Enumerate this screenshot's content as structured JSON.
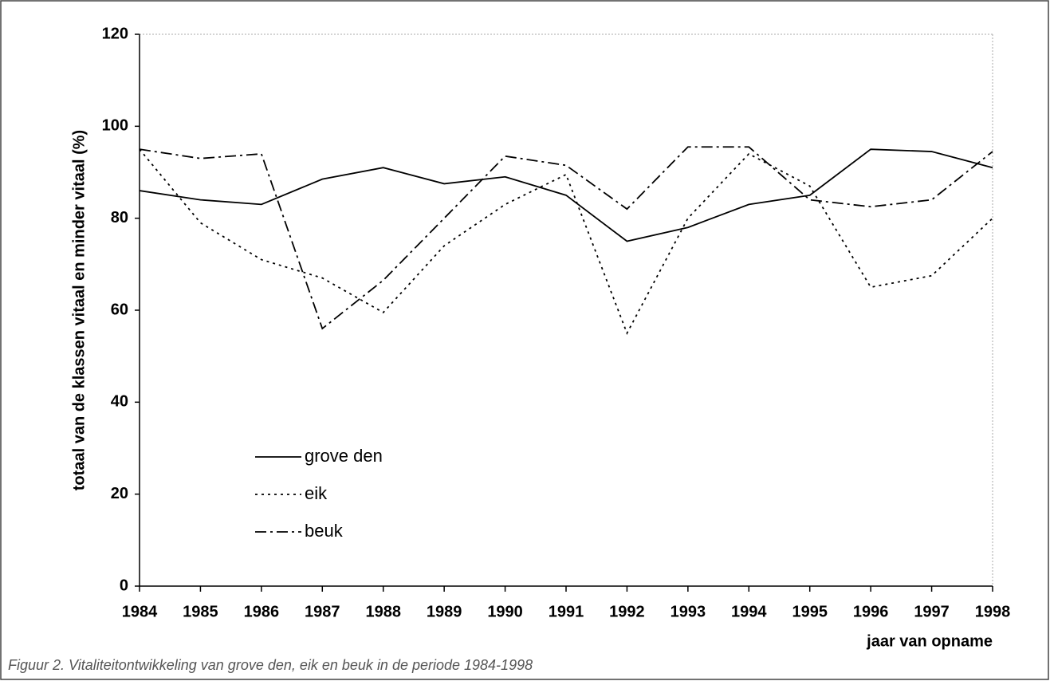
{
  "chart_data": {
    "type": "line",
    "ylabel": "totaal van de klassen vitaal en minder vitaal (%)",
    "xlabel": "jaar van opname",
    "caption": "Figuur 2. Vitaliteitontwikkeling van grove den, eik en beuk in de periode 1984-1998",
    "categories": [
      "1984",
      "1985",
      "1986",
      "1987",
      "1988",
      "1989",
      "1990",
      "1991",
      "1992",
      "1993",
      "1994",
      "1995",
      "1996",
      "1997",
      "1998"
    ],
    "series": [
      {
        "name": "grove den",
        "color": "#000000",
        "line_style": "solid",
        "values": [
          86,
          84,
          83,
          88.5,
          91,
          87.5,
          89,
          85,
          75,
          78,
          83,
          85,
          95,
          94.5,
          91
        ]
      },
      {
        "name": "eik",
        "color": "#000000",
        "line_style": "dotted",
        "values": [
          95,
          79,
          71,
          67,
          59.5,
          74,
          83,
          89.5,
          55,
          80,
          94,
          87,
          65,
          67.5,
          80
        ]
      },
      {
        "name": "beuk",
        "color": "#000000",
        "line_style": "dashdot",
        "values": [
          95,
          93,
          94,
          56,
          66.5,
          80,
          93.5,
          91.5,
          82,
          95.5,
          95.5,
          84,
          82.5,
          84,
          94.5
        ]
      }
    ],
    "ylim": [
      0,
      120
    ],
    "yticks": [
      0,
      20,
      40,
      60,
      80,
      100,
      120
    ],
    "grid": false,
    "legend": "lower left"
  }
}
